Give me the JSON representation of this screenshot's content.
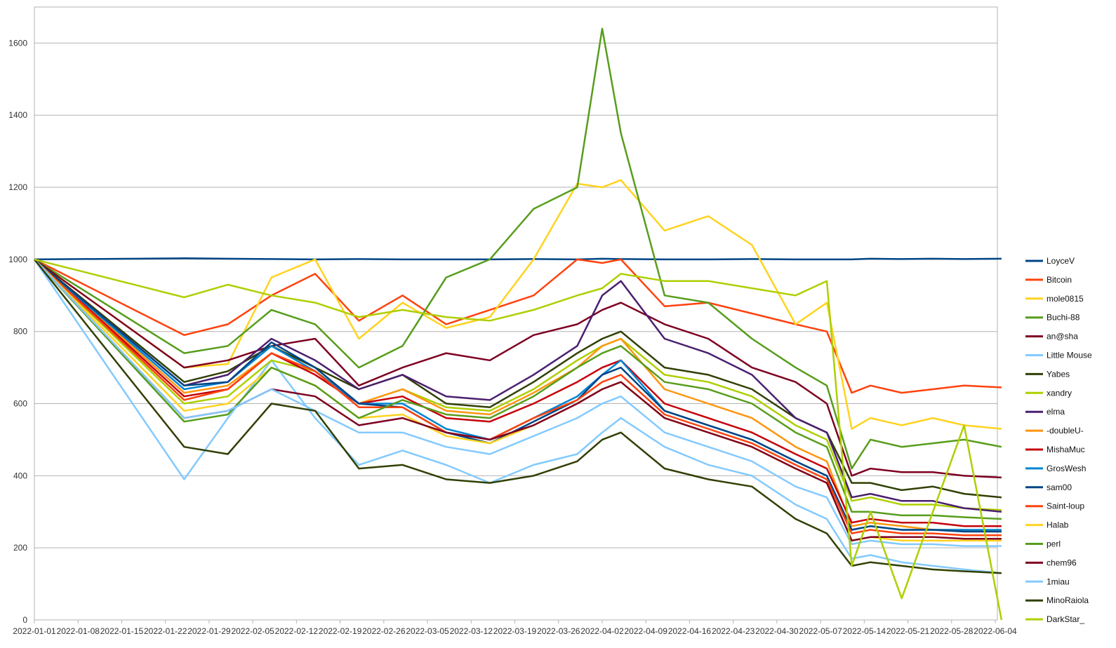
{
  "chart_data": {
    "type": "line",
    "title": "",
    "xlabel": "",
    "ylabel": "",
    "ylim": [
      0,
      1700
    ],
    "yticks": [
      0,
      200,
      400,
      600,
      800,
      1000,
      1200,
      1400,
      1600
    ],
    "x_tick_labels": [
      "2022-01-01",
      "2022-01-08",
      "2022-01-15",
      "2022-01-22",
      "2022-01-29",
      "2022-02-05",
      "2022-02-12",
      "2022-02-19",
      "2022-02-26",
      "2022-03-05",
      "2022-03-12",
      "2022-03-19",
      "2022-03-26",
      "2022-04-02",
      "2022-04-09",
      "2022-04-16",
      "2022-04-23",
      "2022-04-30",
      "2022-05-07",
      "2022-05-14",
      "2022-05-21",
      "2022-05-28",
      "2022-06-04"
    ],
    "grid": "horizontal",
    "legend_position": "right",
    "x": [
      "2022-01-01",
      "2022-01-25",
      "2022-02-01",
      "2022-02-08",
      "2022-02-15",
      "2022-02-22",
      "2022-03-01",
      "2022-03-08",
      "2022-03-15",
      "2022-03-22",
      "2022-03-29",
      "2022-04-02",
      "2022-04-05",
      "2022-04-12",
      "2022-04-19",
      "2022-04-26",
      "2022-05-03",
      "2022-05-08",
      "2022-05-12",
      "2022-05-15",
      "2022-05-20",
      "2022-05-25",
      "2022-05-30",
      "2022-06-05"
    ],
    "series": [
      {
        "name": "LoyceV",
        "color": "#004586",
        "values": [
          1000,
          1003,
          1002,
          1001,
          1000,
          1001,
          1000,
          1000,
          1000,
          1001,
          1000,
          1002,
          1001,
          1000,
          1000,
          1001,
          1000,
          1000,
          1000,
          1002,
          1001,
          1002,
          1001,
          1002
        ]
      },
      {
        "name": "Bitcoin",
        "color": "#ff420e",
        "values": [
          1000,
          790,
          820,
          900,
          960,
          830,
          900,
          820,
          860,
          900,
          1000,
          990,
          1000,
          870,
          880,
          850,
          820,
          800,
          630,
          650,
          630,
          640,
          650,
          645
        ]
      },
      {
        "name": "mole0815",
        "color": "#ffd320",
        "values": [
          1000,
          700,
          710,
          950,
          1000,
          780,
          880,
          810,
          840,
          1000,
          1210,
          1200,
          1220,
          1080,
          1120,
          1040,
          820,
          880,
          530,
          560,
          540,
          560,
          540,
          530
        ]
      },
      {
        "name": "Buchi-88",
        "color": "#579d1c",
        "values": [
          1000,
          740,
          760,
          860,
          820,
          700,
          760,
          950,
          1000,
          1140,
          1200,
          1640,
          1350,
          900,
          880,
          780,
          700,
          650,
          420,
          500,
          480,
          490,
          500,
          480
        ]
      },
      {
        "name": "an@sha",
        "color": "#7e0021",
        "values": [
          1000,
          700,
          720,
          760,
          780,
          650,
          700,
          740,
          720,
          790,
          820,
          860,
          880,
          820,
          780,
          700,
          660,
          600,
          400,
          420,
          410,
          410,
          400,
          395
        ]
      },
      {
        "name": "Little Mouse",
        "color": "#83caff",
        "values": [
          1000,
          390,
          560,
          720,
          560,
          430,
          470,
          430,
          380,
          430,
          460,
          520,
          560,
          480,
          430,
          400,
          320,
          280,
          170,
          180,
          160,
          150,
          140,
          130
        ]
      },
      {
        "name": "Yabes",
        "color": "#314004",
        "values": [
          1000,
          660,
          690,
          760,
          700,
          640,
          680,
          600,
          590,
          660,
          740,
          780,
          800,
          700,
          680,
          640,
          560,
          520,
          380,
          380,
          360,
          370,
          350,
          340
        ]
      },
      {
        "name": "xandry",
        "color": "#aecf00",
        "values": [
          1000,
          600,
          620,
          720,
          690,
          600,
          640,
          590,
          580,
          640,
          720,
          760,
          780,
          680,
          660,
          620,
          540,
          500,
          330,
          340,
          320,
          320,
          310,
          305
        ]
      },
      {
        "name": "elma",
        "color": "#4b1f6f",
        "values": [
          1000,
          650,
          680,
          780,
          720,
          640,
          680,
          620,
          610,
          680,
          760,
          900,
          940,
          780,
          740,
          680,
          560,
          520,
          340,
          350,
          330,
          330,
          310,
          300
        ]
      },
      {
        "name": "-doubleU-",
        "color": "#ff950e",
        "values": [
          1000,
          630,
          650,
          740,
          690,
          600,
          640,
          580,
          570,
          630,
          700,
          760,
          780,
          640,
          600,
          560,
          480,
          440,
          260,
          270,
          260,
          250,
          250,
          245
        ]
      },
      {
        "name": "MishaMuc",
        "color": "#c5000b",
        "values": [
          1000,
          620,
          640,
          740,
          680,
          600,
          620,
          560,
          550,
          600,
          660,
          700,
          720,
          600,
          560,
          520,
          460,
          420,
          270,
          280,
          270,
          270,
          260,
          260
        ]
      },
      {
        "name": "GrosWesh",
        "color": "#0084d1",
        "values": [
          1000,
          640,
          660,
          760,
          690,
          600,
          600,
          530,
          500,
          560,
          620,
          680,
          720,
          580,
          540,
          500,
          440,
          400,
          250,
          260,
          250,
          250,
          250,
          250
        ]
      },
      {
        "name": "sam00",
        "color": "#004586",
        "values": [
          1000,
          650,
          660,
          770,
          700,
          600,
          590,
          520,
          490,
          550,
          610,
          680,
          700,
          580,
          540,
          500,
          440,
          400,
          250,
          260,
          250,
          250,
          245,
          245
        ]
      },
      {
        "name": "Saint-loup",
        "color": "#ff420e",
        "values": [
          1000,
          610,
          640,
          740,
          690,
          590,
          590,
          520,
          500,
          560,
          610,
          660,
          680,
          570,
          530,
          490,
          430,
          390,
          240,
          250,
          240,
          240,
          235,
          235
        ]
      },
      {
        "name": "Halab",
        "color": "#ffd320",
        "values": [
          1000,
          580,
          600,
          700,
          650,
          560,
          570,
          510,
          490,
          540,
          600,
          640,
          660,
          560,
          520,
          480,
          420,
          380,
          220,
          230,
          220,
          220,
          220,
          220
        ]
      },
      {
        "name": "perl",
        "color": "#579d1c",
        "values": [
          1000,
          550,
          570,
          700,
          650,
          560,
          610,
          570,
          560,
          620,
          700,
          740,
          760,
          660,
          640,
          600,
          520,
          480,
          300,
          300,
          290,
          290,
          285,
          280
        ]
      },
      {
        "name": "chem96",
        "color": "#7e0021",
        "values": [
          1000,
          560,
          580,
          640,
          620,
          540,
          560,
          520,
          500,
          540,
          600,
          640,
          660,
          560,
          520,
          480,
          420,
          380,
          220,
          230,
          230,
          230,
          225,
          225
        ]
      },
      {
        "name": "1miau",
        "color": "#83caff",
        "values": [
          1000,
          560,
          580,
          640,
          580,
          520,
          520,
          480,
          460,
          510,
          560,
          600,
          620,
          520,
          480,
          440,
          370,
          340,
          210,
          220,
          210,
          210,
          205,
          205
        ]
      },
      {
        "name": "MinoRaiola",
        "color": "#314004",
        "values": [
          1000,
          480,
          460,
          600,
          580,
          420,
          430,
          390,
          380,
          400,
          440,
          500,
          520,
          420,
          390,
          370,
          280,
          240,
          150,
          160,
          150,
          140,
          135,
          130
        ]
      },
      {
        "name": "DarkStar_",
        "color": "#aecf00",
        "values": [
          1000,
          895,
          930,
          900,
          880,
          840,
          860,
          840,
          830,
          860,
          900,
          920,
          960,
          940,
          940,
          920,
          900,
          940,
          150,
          300,
          60,
          300,
          540,
          0
        ]
      }
    ]
  }
}
